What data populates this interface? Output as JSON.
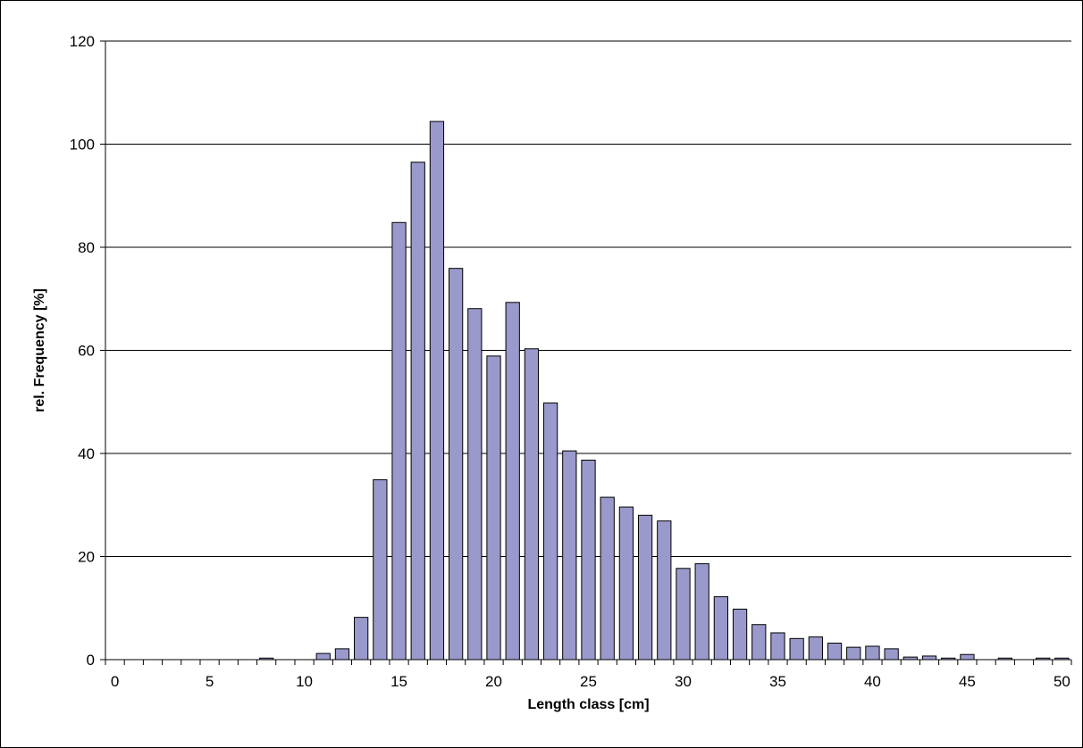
{
  "chart_data": {
    "type": "bar",
    "title": "",
    "xlabel": "Length class [cm]",
    "ylabel": "rel. Frequency [%]",
    "xlim": [
      0,
      50
    ],
    "ylim": [
      0,
      120
    ],
    "x_ticks": [
      0,
      5,
      10,
      15,
      20,
      25,
      30,
      35,
      40,
      45,
      50
    ],
    "y_ticks": [
      0,
      20,
      40,
      60,
      80,
      100,
      120
    ],
    "grid": "horizontal",
    "bar_color": "#9999cc",
    "x": [
      0,
      1,
      2,
      3,
      4,
      5,
      6,
      7,
      8,
      9,
      10,
      11,
      12,
      13,
      14,
      15,
      16,
      17,
      18,
      19,
      20,
      21,
      22,
      23,
      24,
      25,
      26,
      27,
      28,
      29,
      30,
      31,
      32,
      33,
      34,
      35,
      36,
      37,
      38,
      39,
      40,
      41,
      42,
      43,
      44,
      45,
      46,
      47,
      48,
      49,
      50
    ],
    "values": [
      0,
      0,
      0,
      0,
      0,
      0,
      0,
      0,
      0.3,
      0,
      0,
      1.2,
      2.1,
      8.2,
      34.9,
      84.8,
      96.5,
      104.4,
      75.9,
      68.1,
      58.9,
      69.3,
      60.3,
      49.8,
      40.5,
      38.7,
      31.5,
      29.6,
      28.0,
      26.9,
      17.7,
      18.6,
      12.2,
      9.8,
      6.8,
      5.2,
      4.1,
      4.4,
      3.2,
      2.4,
      2.6,
      2.1,
      0.5,
      0.7,
      0.3,
      1.0,
      0,
      0.3,
      0,
      0.3,
      0.3
    ]
  }
}
